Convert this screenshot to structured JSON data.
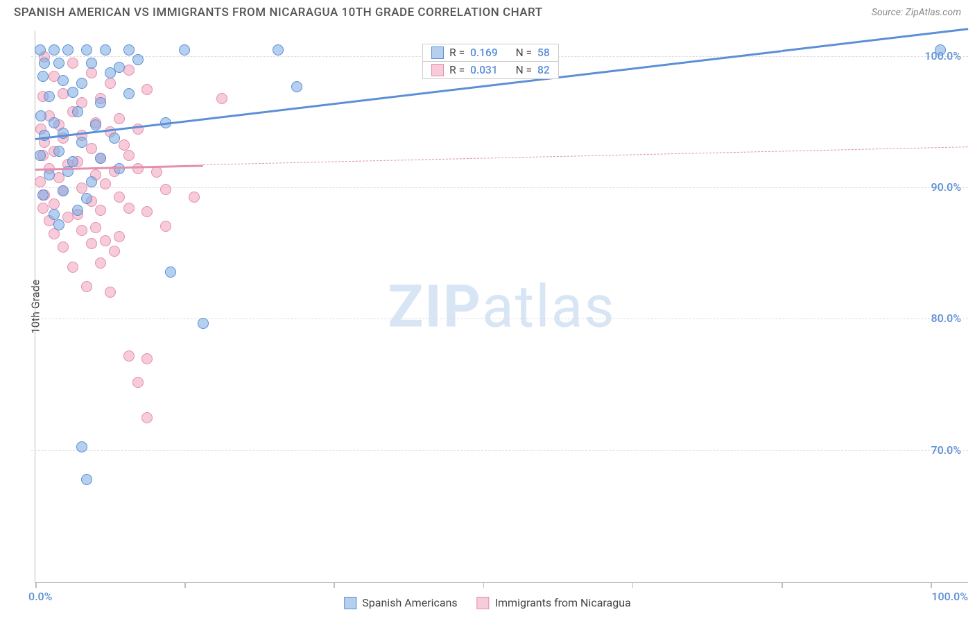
{
  "title": "SPANISH AMERICAN VS IMMIGRANTS FROM NICARAGUA 10TH GRADE CORRELATION CHART",
  "source": "Source: ZipAtlas.com",
  "watermark": {
    "bold": "ZIP",
    "rest": "atlas",
    "color": "#d7e5f5"
  },
  "chart": {
    "type": "scatter",
    "background_color": "#ffffff",
    "axis_color": "#bdbdbd",
    "grid_color": "#dcdcdc",
    "text_blue": "#5b8fd6",
    "y_axis_title": "10th Grade",
    "xlim": [
      0,
      100
    ],
    "ylim": [
      60,
      102
    ],
    "x_tick_labels": {
      "min": "0.0%",
      "max": "100.0%"
    },
    "x_tick_positions_pct": [
      0,
      16,
      32,
      48,
      64,
      80,
      96
    ],
    "y_gridlines": [
      {
        "value": 70,
        "label": "70.0%"
      },
      {
        "value": 80,
        "label": "80.0%"
      },
      {
        "value": 90,
        "label": "90.0%"
      },
      {
        "value": 100,
        "label": "100.0%"
      }
    ],
    "series": [
      {
        "key": "spanish_americans",
        "label": "Spanish Americans",
        "fill": "rgba(120,167,224,0.55)",
        "stroke": "#5b8fd6",
        "r_value": "0.169",
        "n_value": "58",
        "trend": {
          "x1": 0,
          "y1": 93.8,
          "x2": 80,
          "y2": 100.5,
          "dash": "solid",
          "extend_to": 100,
          "extend_dash": "solid"
        },
        "points": [
          [
            0.5,
            100.5
          ],
          [
            2,
            100.5
          ],
          [
            3.5,
            100.5
          ],
          [
            5.5,
            100.5
          ],
          [
            7.5,
            100.5
          ],
          [
            10,
            100.5
          ],
          [
            16,
            100.5
          ],
          [
            26,
            100.5
          ],
          [
            97,
            100.5
          ],
          [
            1,
            99.5
          ],
          [
            2.5,
            99.5
          ],
          [
            6,
            99.5
          ],
          [
            9,
            99.2
          ],
          [
            11,
            99.8
          ],
          [
            0.8,
            98.5
          ],
          [
            3,
            98.2
          ],
          [
            5,
            98
          ],
          [
            8,
            98.8
          ],
          [
            28,
            97.7
          ],
          [
            1.5,
            97
          ],
          [
            4,
            97.3
          ],
          [
            7,
            96.5
          ],
          [
            10,
            97.2
          ],
          [
            0.6,
            95.5
          ],
          [
            2,
            95
          ],
          [
            4.5,
            95.8
          ],
          [
            6.5,
            94.8
          ],
          [
            14,
            95
          ],
          [
            1,
            94
          ],
          [
            3,
            94.2
          ],
          [
            5,
            93.5
          ],
          [
            8.5,
            93.8
          ],
          [
            0.5,
            92.5
          ],
          [
            2.5,
            92.8
          ],
          [
            4,
            92
          ],
          [
            7,
            92.3
          ],
          [
            1.5,
            91
          ],
          [
            3.5,
            91.3
          ],
          [
            6,
            90.5
          ],
          [
            9,
            91.5
          ],
          [
            0.8,
            89.5
          ],
          [
            3,
            89.8
          ],
          [
            5.5,
            89.2
          ],
          [
            2,
            88
          ],
          [
            4.5,
            88.3
          ],
          [
            2.5,
            87.2
          ],
          [
            14.5,
            83.6
          ],
          [
            18,
            79.7
          ],
          [
            5,
            70.3
          ],
          [
            5.5,
            67.8
          ]
        ]
      },
      {
        "key": "immigrants_nicaragua",
        "label": "Immigrants from Nicaragua",
        "fill": "rgba(240,160,185,0.55)",
        "stroke": "#e38fae",
        "r_value": "0.031",
        "n_value": "82",
        "trend": {
          "x1": 0,
          "y1": 91.5,
          "x2": 18,
          "y2": 91.8,
          "dash": "solid",
          "extend_to": 100,
          "extend_dash": "dashed"
        },
        "points": [
          [
            1,
            100
          ],
          [
            4,
            99.5
          ],
          [
            2,
            98.5
          ],
          [
            6,
            98.8
          ],
          [
            8,
            98
          ],
          [
            10,
            99
          ],
          [
            12,
            97.5
          ],
          [
            0.8,
            97
          ],
          [
            3,
            97.2
          ],
          [
            5,
            96.5
          ],
          [
            7,
            96.8
          ],
          [
            20,
            96.8
          ],
          [
            1.5,
            95.5
          ],
          [
            4,
            95.8
          ],
          [
            6.5,
            95
          ],
          [
            9,
            95.3
          ],
          [
            0.6,
            94.5
          ],
          [
            2.5,
            94.8
          ],
          [
            5,
            94
          ],
          [
            8,
            94.3
          ],
          [
            11,
            94.5
          ],
          [
            1,
            93.5
          ],
          [
            3,
            93.8
          ],
          [
            6,
            93
          ],
          [
            9.5,
            93.3
          ],
          [
            0.8,
            92.5
          ],
          [
            2,
            92.8
          ],
          [
            4.5,
            92
          ],
          [
            7,
            92.3
          ],
          [
            10,
            92.5
          ],
          [
            1.5,
            91.5
          ],
          [
            3.5,
            91.8
          ],
          [
            6.5,
            91
          ],
          [
            8.5,
            91.3
          ],
          [
            11,
            91.5
          ],
          [
            13,
            91.2
          ],
          [
            0.5,
            90.5
          ],
          [
            2.5,
            90.8
          ],
          [
            5,
            90
          ],
          [
            7.5,
            90.3
          ],
          [
            14,
            89.9
          ],
          [
            17,
            89.3
          ],
          [
            1,
            89.5
          ],
          [
            3,
            89.8
          ],
          [
            6,
            89
          ],
          [
            9,
            89.3
          ],
          [
            0.8,
            88.5
          ],
          [
            2,
            88.8
          ],
          [
            4.5,
            88
          ],
          [
            7,
            88.3
          ],
          [
            10,
            88.5
          ],
          [
            12,
            88.2
          ],
          [
            1.5,
            87.5
          ],
          [
            3.5,
            87.8
          ],
          [
            6.5,
            87
          ],
          [
            2,
            86.5
          ],
          [
            5,
            86.8
          ],
          [
            7.5,
            86
          ],
          [
            9,
            86.3
          ],
          [
            14,
            87.1
          ],
          [
            3,
            85.5
          ],
          [
            6,
            85.8
          ],
          [
            8.5,
            85.2
          ],
          [
            4,
            84
          ],
          [
            7,
            84.3
          ],
          [
            5.5,
            82.5
          ],
          [
            8,
            82.1
          ],
          [
            10,
            77.2
          ],
          [
            12,
            77
          ],
          [
            11,
            75.2
          ],
          [
            12,
            72.5
          ]
        ]
      }
    ],
    "legend_stats": {
      "left_pct": 41.5,
      "top_y_value": 101
    }
  }
}
